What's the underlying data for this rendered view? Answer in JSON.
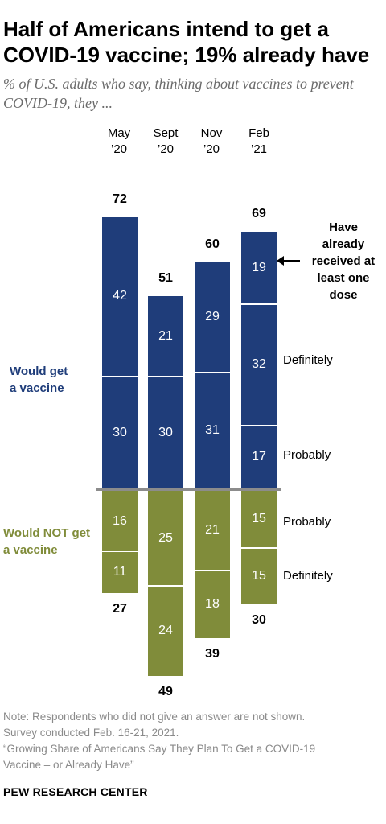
{
  "title": "Half of Americans intend to get a COVID-19 vaccine; 19% already have",
  "subtitle": "% of U.S. adults who say, thinking about vaccines to prevent COVID-19, they ...",
  "notes": [
    "Note: Respondents who did not give an answer are not shown.",
    "Survey conducted Feb. 16-21, 2021.",
    "“Growing Share of Americans Say They Plan To Get a COVID-19",
    "Vaccine – or Already Have”"
  ],
  "source": "PEW RESEARCH CENTER",
  "colors": {
    "get": "#1f3d7a",
    "not_get": "#808c3a",
    "baseline": "#8c8c8c"
  },
  "chart_data": {
    "type": "bar",
    "stacked": true,
    "diverging": true,
    "categories": [
      {
        "line1": "May",
        "line2": "’20"
      },
      {
        "line1": "Sept",
        "line2": "’20"
      },
      {
        "line1": "Nov",
        "line2": "’20"
      },
      {
        "line1": "Feb",
        "line2": "’21"
      }
    ],
    "would_get": {
      "label_line1": "Would get",
      "label_line2": "a vaccine",
      "series": [
        {
          "name": "Probably",
          "values": [
            30,
            30,
            31,
            17
          ]
        },
        {
          "name": "Definitely",
          "values": [
            42,
            21,
            29,
            32
          ]
        },
        {
          "name": "Have already received at least one dose",
          "values": [
            null,
            null,
            null,
            19
          ]
        }
      ],
      "totals": [
        72,
        51,
        60,
        69
      ]
    },
    "would_not_get": {
      "label_line1": "Would NOT get",
      "label_line2": "a vaccine",
      "series": [
        {
          "name": "Probably",
          "values": [
            16,
            25,
            21,
            15
          ]
        },
        {
          "name": "Definitely",
          "values": [
            11,
            24,
            18,
            15
          ]
        }
      ],
      "totals": [
        27,
        49,
        39,
        30
      ]
    },
    "side_labels": {
      "get_probably": "Probably",
      "get_definitely": "Definitely",
      "not_probably": "Probably",
      "not_definitely": "Definitely"
    },
    "annotation": [
      "Have",
      "already",
      "received at",
      "least one",
      "dose"
    ]
  }
}
